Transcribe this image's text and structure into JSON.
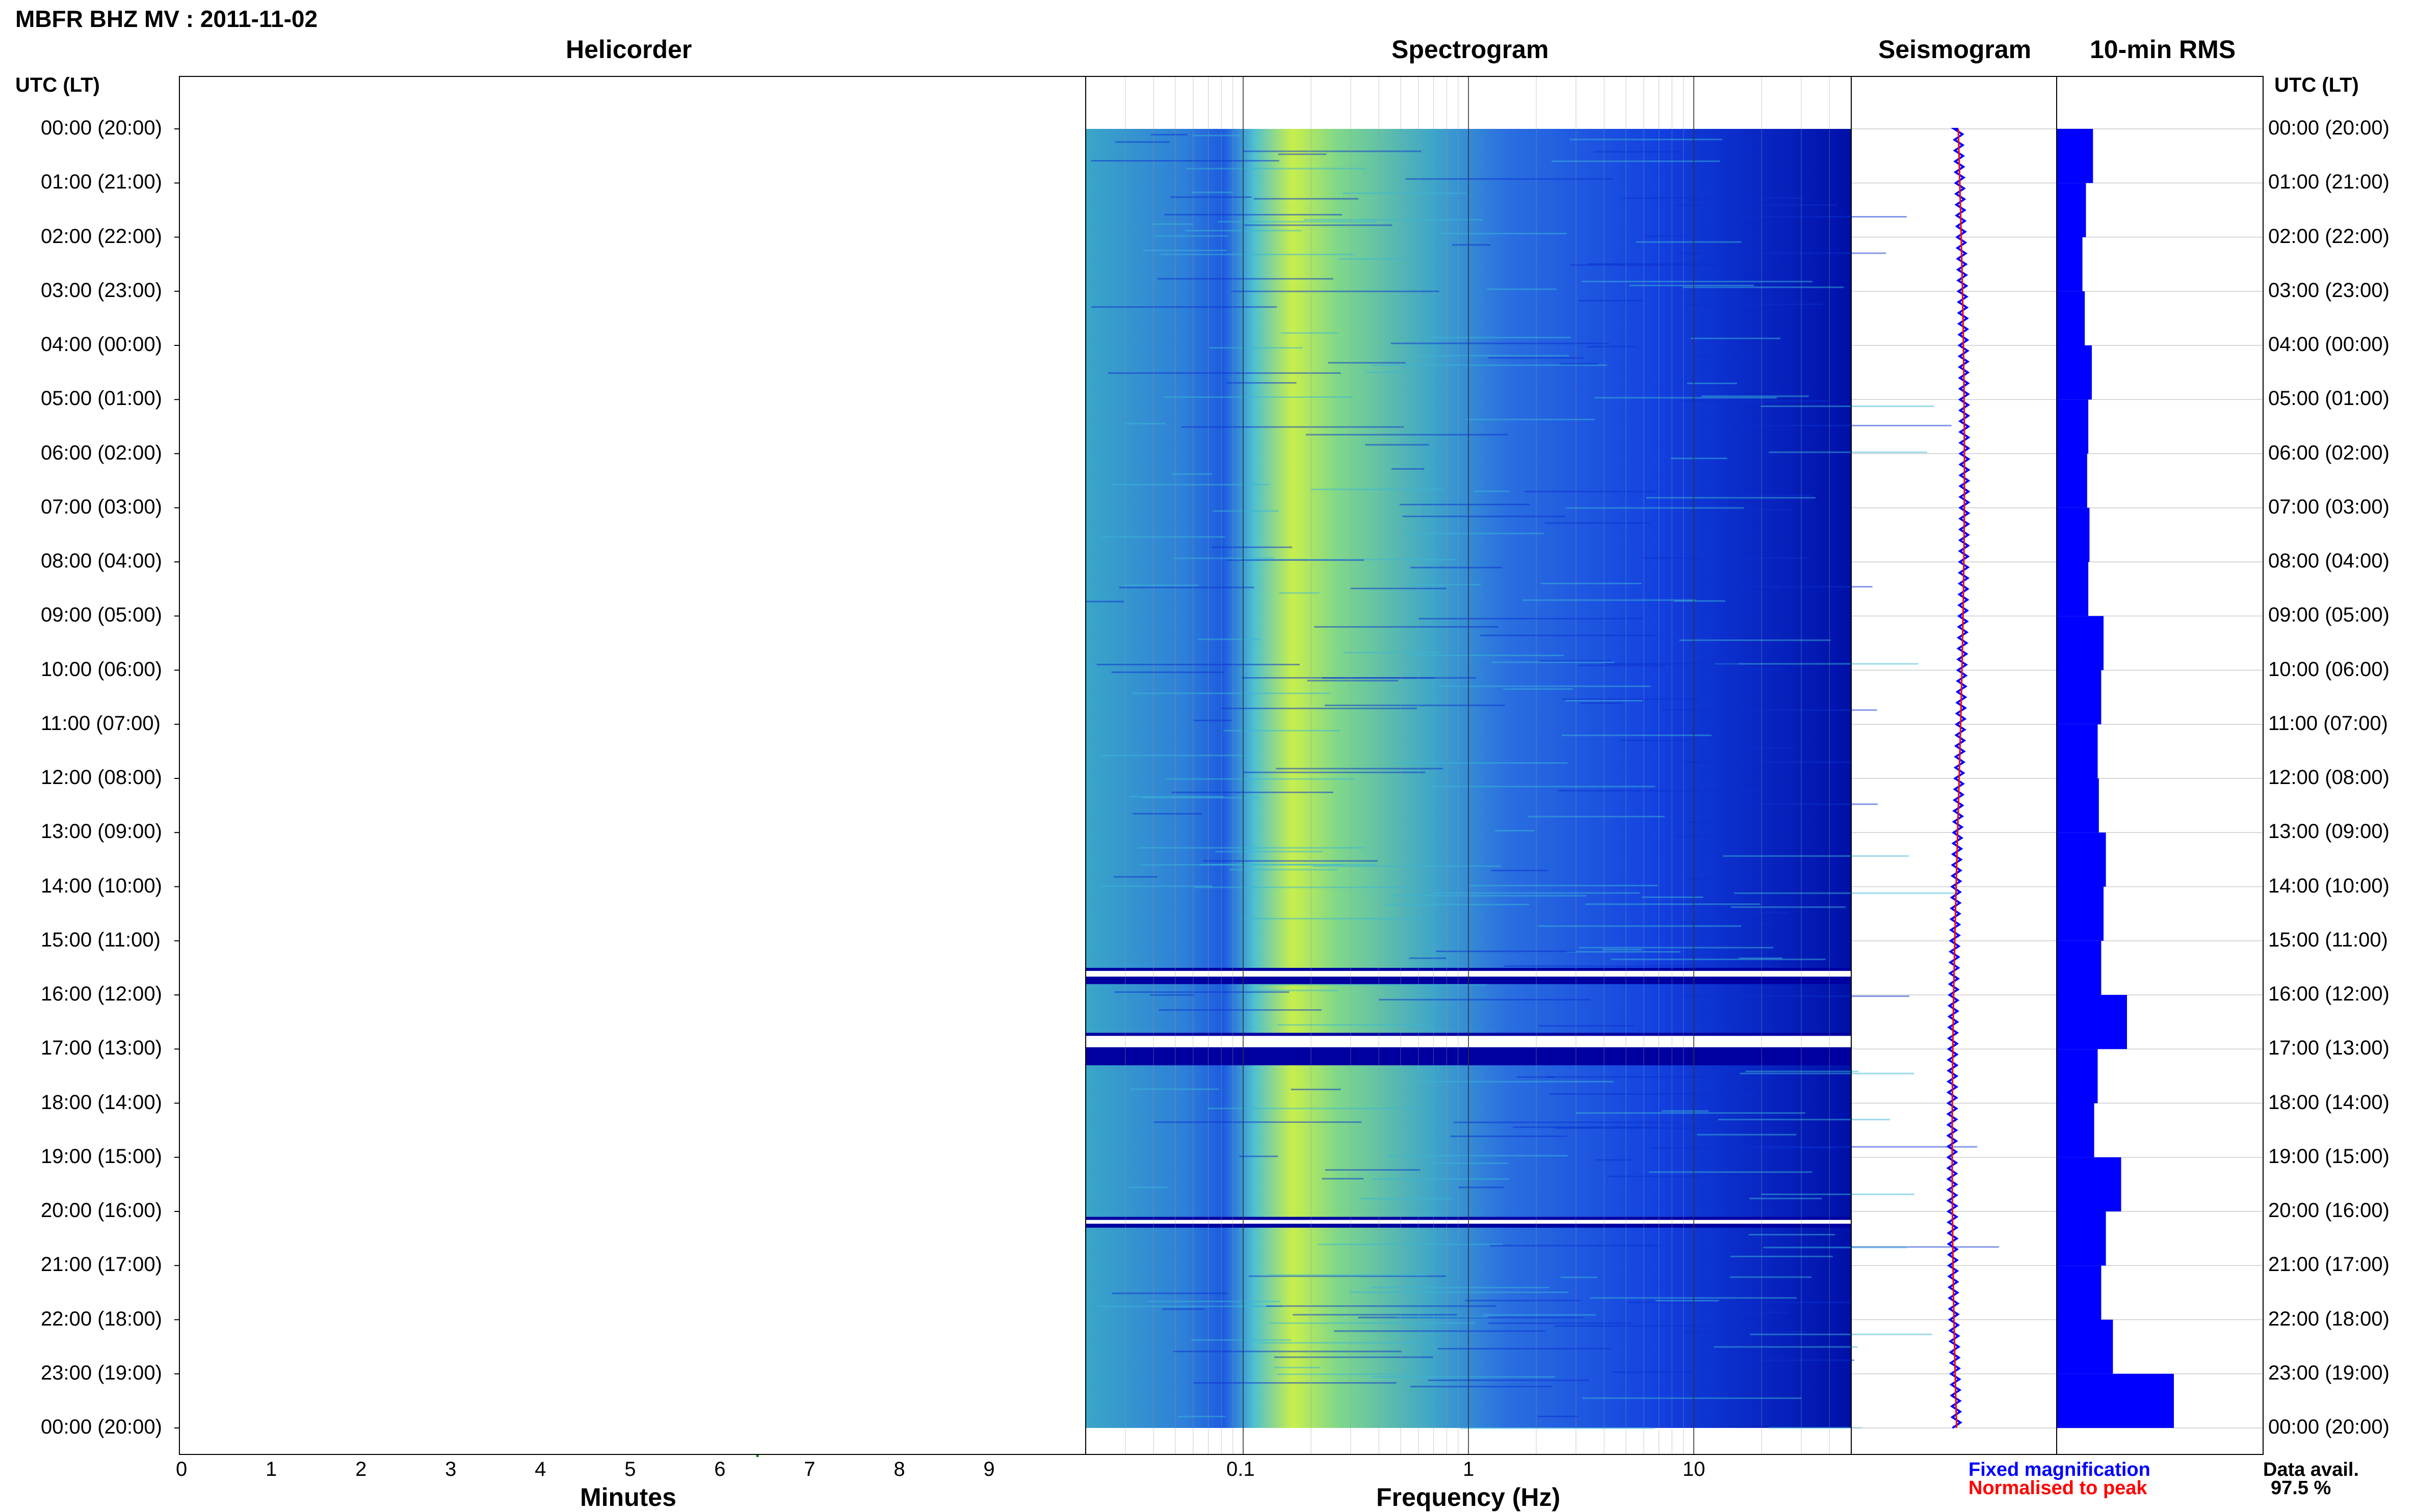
{
  "title": "MBFR BHZ MV : 2011-11-02",
  "panels": {
    "helicorder": "Helicorder",
    "spectrogram": "Spectrogram",
    "seismogram": "Seismogram",
    "rms": "10-min RMS"
  },
  "time_header": "UTC (LT)",
  "time_labels": [
    "00:00 (20:00)",
    "01:00 (21:00)",
    "02:00 (22:00)",
    "03:00 (23:00)",
    "04:00 (00:00)",
    "05:00 (01:00)",
    "06:00 (02:00)",
    "07:00 (03:00)",
    "08:00 (04:00)",
    "09:00 (05:00)",
    "10:00 (06:00)",
    "11:00 (07:00)",
    "12:00 (08:00)",
    "13:00 (09:00)",
    "14:00 (10:00)",
    "15:00 (11:00)",
    "16:00 (12:00)",
    "17:00 (13:00)",
    "18:00 (14:00)",
    "19:00 (15:00)",
    "20:00 (16:00)",
    "21:00 (17:00)",
    "22:00 (18:00)",
    "23:00 (19:00)",
    "00:00 (20:00)"
  ],
  "minute_ticks": [
    "0",
    "1",
    "2",
    "3",
    "4",
    "5",
    "6",
    "7",
    "8",
    "9"
  ],
  "minutes_label": "Minutes",
  "freq_ticks": [
    "0.1",
    "1",
    "10"
  ],
  "freq_label": "Frequency (Hz)",
  "legend": {
    "fixed": "Fixed magnification",
    "normalised": "Normalised to peak",
    "fixed_color": "#0000ff",
    "normalised_color": "#ff0000"
  },
  "data_avail": {
    "label": "Data avail.",
    "value": "97.5 %"
  },
  "colors": {
    "trace_cycle": [
      "#000000",
      "#cc0000",
      "#0000cc",
      "#008800"
    ],
    "spectrogram_low": "#0000aa",
    "spectrogram_high": "#ffff00",
    "rms_bar": "#0000ff"
  },
  "chart_data": [
    {
      "type": "line",
      "title": "Helicorder",
      "xlabel": "Minutes",
      "xlim": [
        0,
        10
      ],
      "rows_per_hour": 6,
      "hours": 24,
      "gap_hours": [
        15.5,
        17.2
      ]
    },
    {
      "type": "heatmap",
      "title": "Spectrogram",
      "xlabel": "Frequency (Hz)",
      "xscale": "log",
      "xlim": [
        0.02,
        50
      ],
      "peak_band_hz": [
        0.15,
        0.3
      ],
      "gaps_utc_hours": [
        [
          15.5,
          15.8
        ],
        [
          16.7,
          17.3
        ],
        [
          20.1,
          20.3
        ]
      ]
    },
    {
      "type": "line",
      "title": "Seismogram",
      "series": [
        {
          "name": "Fixed magnification"
        },
        {
          "name": "Normalised to peak"
        }
      ]
    },
    {
      "type": "bar",
      "title": "10-min RMS",
      "orientation": "horizontal",
      "hourly_rms": [
        0.31,
        0.25,
        0.22,
        0.24,
        0.3,
        0.27,
        0.26,
        0.28,
        0.27,
        0.4,
        0.38,
        0.35,
        0.36,
        0.42,
        0.4,
        0.38,
        0.6,
        0.35,
        0.32,
        0.55,
        0.42,
        0.38,
        0.48,
        1.0
      ]
    }
  ]
}
